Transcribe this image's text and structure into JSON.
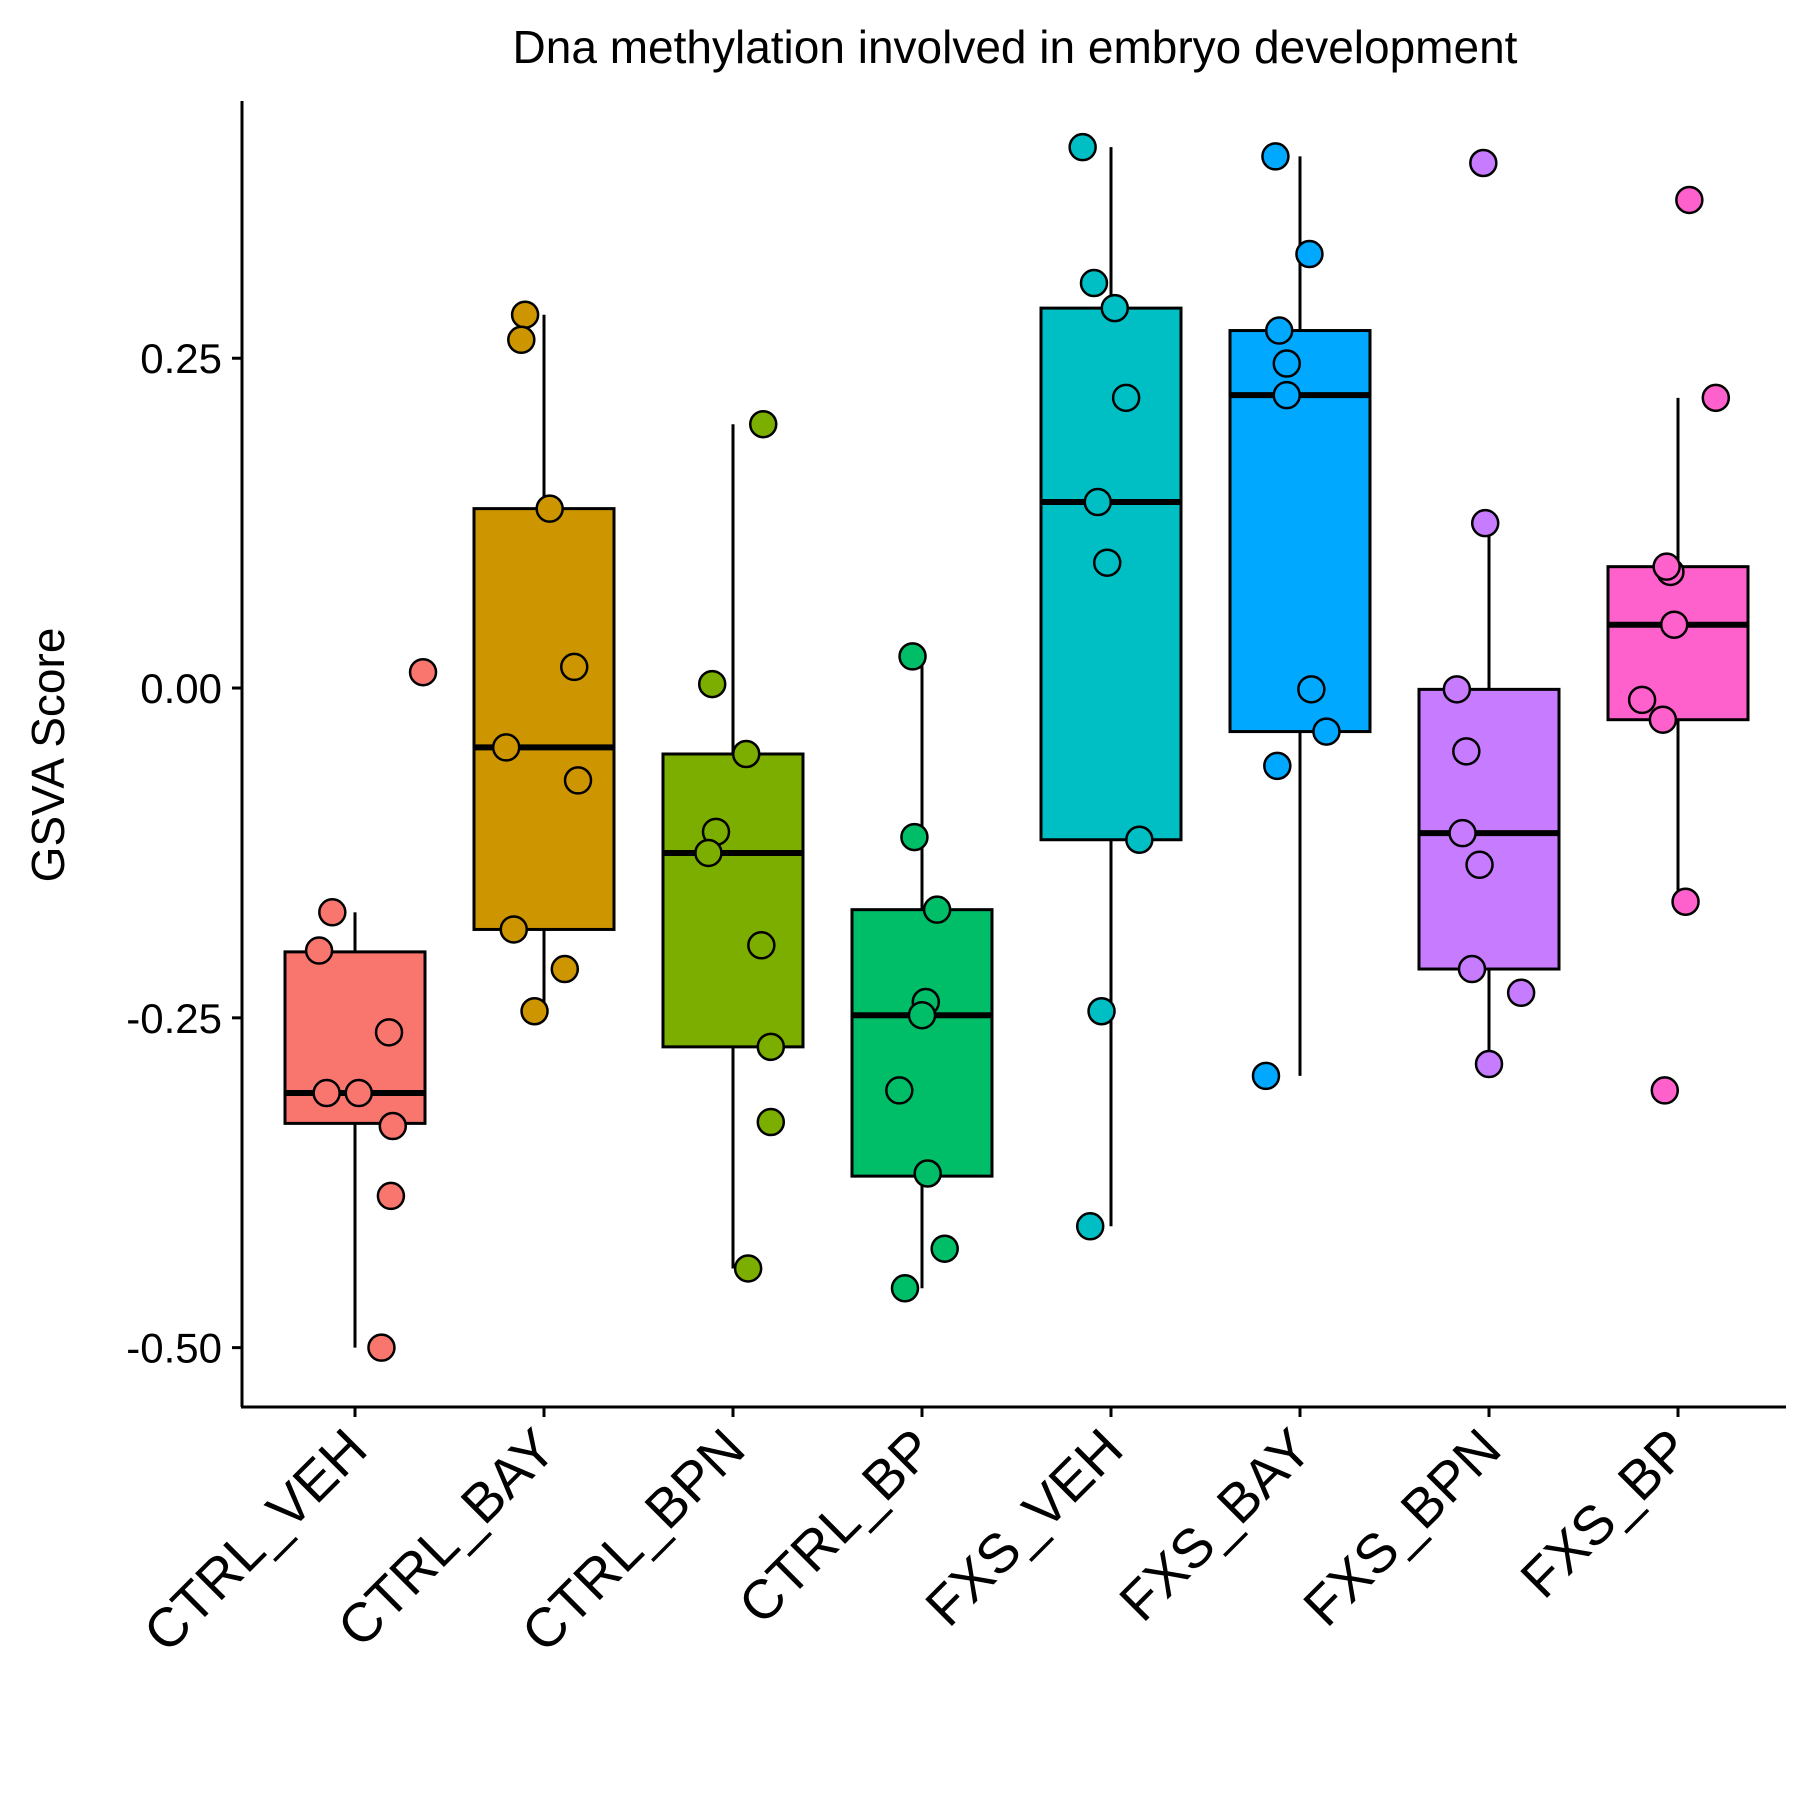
{
  "chart_data": {
    "type": "box",
    "title": "Dna methylation involved in embryo development",
    "xlabel": "",
    "ylabel": "GSVA Score",
    "ylim": [
      -0.545,
      0.445
    ],
    "y_ticks": [
      "0.25",
      "0.00",
      "-0.25",
      "-0.50"
    ],
    "y_tick_values": [
      0.25,
      0.0,
      -0.25,
      -0.5
    ],
    "legend": "none",
    "grid": false,
    "categories": [
      "CTRL_VEH",
      "CTRL_BAY",
      "CTRL_BPN",
      "CTRL_BP",
      "FXS_VEH",
      "FXS_BAY",
      "FXS_BPN",
      "FXS_BP"
    ],
    "colors": [
      "#F8766D",
      "#CD9600",
      "#7CAE00",
      "#00BE67",
      "#00BFC4",
      "#00A9FF",
      "#C77CFF",
      "#FF61CC"
    ],
    "boxes": [
      {
        "q1": -0.33,
        "median": -0.307,
        "q3": -0.2,
        "whisker_low": -0.5,
        "whisker_high": -0.17
      },
      {
        "q1": -0.183,
        "median": -0.045,
        "q3": 0.136,
        "whisker_low": -0.245,
        "whisker_high": 0.283
      },
      {
        "q1": -0.272,
        "median": -0.125,
        "q3": -0.05,
        "whisker_low": -0.44,
        "whisker_high": 0.2
      },
      {
        "q1": -0.37,
        "median": -0.248,
        "q3": -0.168,
        "whisker_low": -0.455,
        "whisker_high": 0.02
      },
      {
        "q1": -0.115,
        "median": 0.141,
        "q3": 0.288,
        "whisker_low": -0.408,
        "whisker_high": 0.41
      },
      {
        "q1": -0.033,
        "median": 0.222,
        "q3": 0.271,
        "whisker_low": -0.294,
        "whisker_high": 0.403
      },
      {
        "q1": -0.213,
        "median": -0.11,
        "q3": -0.001,
        "whisker_low": -0.285,
        "whisker_high": 0.125
      },
      {
        "q1": -0.024,
        "median": 0.048,
        "q3": 0.092,
        "whisker_low": -0.162,
        "whisker_high": 0.22
      }
    ],
    "points": [
      [
        {
          "x": 0.36,
          "y": 0.012
        },
        {
          "x": -0.12,
          "y": -0.17
        },
        {
          "x": -0.19,
          "y": -0.199
        },
        {
          "x": 0.18,
          "y": -0.261
        },
        {
          "x": -0.15,
          "y": -0.307
        },
        {
          "x": 0.02,
          "y": -0.307
        },
        {
          "x": 0.2,
          "y": -0.332
        },
        {
          "x": 0.19,
          "y": -0.385
        },
        {
          "x": 0.14,
          "y": -0.5
        }
      ],
      [
        {
          "x": -0.1,
          "y": 0.283
        },
        {
          "x": -0.12,
          "y": 0.264
        },
        {
          "x": 0.03,
          "y": 0.136
        },
        {
          "x": 0.16,
          "y": 0.016
        },
        {
          "x": -0.2,
          "y": -0.045
        },
        {
          "x": 0.18,
          "y": -0.07
        },
        {
          "x": -0.16,
          "y": -0.183
        },
        {
          "x": 0.11,
          "y": -0.213
        },
        {
          "x": -0.05,
          "y": -0.245
        }
      ],
      [
        {
          "x": 0.16,
          "y": 0.2
        },
        {
          "x": -0.11,
          "y": 0.003
        },
        {
          "x": 0.07,
          "y": -0.05
        },
        {
          "x": -0.09,
          "y": -0.109
        },
        {
          "x": -0.13,
          "y": -0.125
        },
        {
          "x": 0.15,
          "y": -0.195
        },
        {
          "x": 0.2,
          "y": -0.272
        },
        {
          "x": 0.2,
          "y": -0.329
        },
        {
          "x": 0.08,
          "y": -0.44
        }
      ],
      [
        {
          "x": -0.05,
          "y": 0.024
        },
        {
          "x": -0.04,
          "y": -0.113
        },
        {
          "x": 0.08,
          "y": -0.168
        },
        {
          "x": 0.02,
          "y": -0.238
        },
        {
          "x": 0.0,
          "y": -0.248
        },
        {
          "x": -0.12,
          "y": -0.305
        },
        {
          "x": 0.03,
          "y": -0.368
        },
        {
          "x": 0.12,
          "y": -0.425
        },
        {
          "x": -0.09,
          "y": -0.455
        }
      ],
      [
        {
          "x": -0.15,
          "y": 0.41
        },
        {
          "x": -0.09,
          "y": 0.307
        },
        {
          "x": 0.02,
          "y": 0.288
        },
        {
          "x": 0.08,
          "y": 0.22
        },
        {
          "x": -0.07,
          "y": 0.141
        },
        {
          "x": -0.02,
          "y": 0.095
        },
        {
          "x": 0.15,
          "y": -0.115
        },
        {
          "x": -0.05,
          "y": -0.245
        },
        {
          "x": -0.11,
          "y": -0.408
        }
      ],
      [
        {
          "x": -0.13,
          "y": 0.403
        },
        {
          "x": 0.05,
          "y": 0.329
        },
        {
          "x": -0.11,
          "y": 0.271
        },
        {
          "x": -0.07,
          "y": 0.246
        },
        {
          "x": -0.07,
          "y": 0.222
        },
        {
          "x": 0.06,
          "y": -0.001
        },
        {
          "x": 0.14,
          "y": -0.033
        },
        {
          "x": -0.12,
          "y": -0.059
        },
        {
          "x": -0.18,
          "y": -0.294
        }
      ],
      [
        {
          "x": -0.03,
          "y": 0.398
        },
        {
          "x": -0.02,
          "y": 0.125
        },
        {
          "x": -0.17,
          "y": -0.001
        },
        {
          "x": -0.12,
          "y": -0.048
        },
        {
          "x": -0.14,
          "y": -0.11
        },
        {
          "x": -0.05,
          "y": -0.134
        },
        {
          "x": -0.09,
          "y": -0.213
        },
        {
          "x": 0.17,
          "y": -0.231
        },
        {
          "x": 0.0,
          "y": -0.285
        }
      ],
      [
        {
          "x": 0.06,
          "y": 0.37
        },
        {
          "x": 0.2,
          "y": 0.22
        },
        {
          "x": -0.04,
          "y": 0.088
        },
        {
          "x": -0.06,
          "y": 0.092
        },
        {
          "x": -0.02,
          "y": 0.048
        },
        {
          "x": -0.19,
          "y": -0.009
        },
        {
          "x": -0.08,
          "y": -0.024
        },
        {
          "x": 0.04,
          "y": -0.162
        },
        {
          "x": -0.07,
          "y": -0.305
        }
      ]
    ]
  }
}
